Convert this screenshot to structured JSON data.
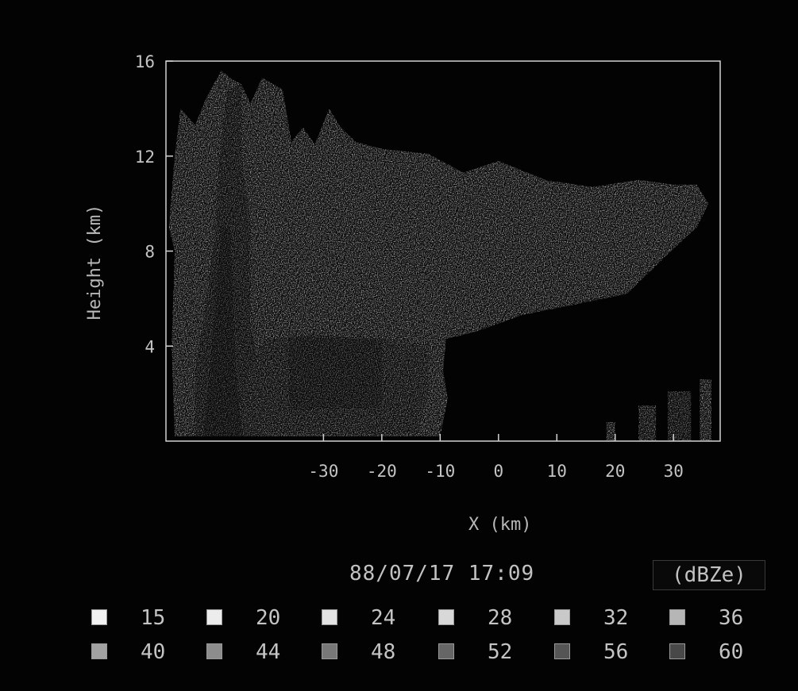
{
  "chart_data": {
    "type": "heatmap",
    "title": "",
    "xlabel": "X (km)",
    "ylabel": "Height (km)",
    "xlim": [
      -57,
      38
    ],
    "ylim": [
      0,
      16
    ],
    "x_ticks": [
      -30,
      -20,
      -10,
      0,
      10,
      20,
      30
    ],
    "y_ticks": [
      4,
      8,
      12,
      16
    ],
    "timestamp": "88/07/17 17:09",
    "unit": "(dBZe)",
    "legend_levels": [
      15,
      20,
      24,
      28,
      32,
      36,
      40,
      44,
      48,
      52,
      56,
      60
    ],
    "level_colors": [
      "#f2f2f2",
      "#ececec",
      "#e3e3e3",
      "#d8d8d8",
      "#c9c9c9",
      "#b6b6b6",
      "#a2a2a2",
      "#8d8d8d",
      "#787878",
      "#666666",
      "#555555",
      "#484848"
    ],
    "echo_regions": [
      {
        "name": "main-anvil-outline",
        "level": 15,
        "polygon": [
          [
            -55.5,
            0.2
          ],
          [
            -56,
            4
          ],
          [
            -55.5,
            8
          ],
          [
            -56.5,
            9
          ],
          [
            -55.5,
            12
          ],
          [
            -54.5,
            14
          ],
          [
            -52,
            13.3
          ],
          [
            -50,
            14.5
          ],
          [
            -47.5,
            15.6
          ],
          [
            -46,
            15.3
          ],
          [
            -44,
            15
          ],
          [
            -42.5,
            14.2
          ],
          [
            -40.5,
            15.3
          ],
          [
            -37,
            14.8
          ],
          [
            -35.5,
            12.6
          ],
          [
            -33.5,
            13.2
          ],
          [
            -31.5,
            12.5
          ],
          [
            -29,
            14
          ],
          [
            -27,
            13.2
          ],
          [
            -24.5,
            12.6
          ],
          [
            -20,
            12.3
          ],
          [
            -12,
            12.1
          ],
          [
            -6,
            11.3
          ],
          [
            0,
            11.8
          ],
          [
            8,
            11
          ],
          [
            16,
            10.7
          ],
          [
            24,
            11
          ],
          [
            30,
            10.8
          ],
          [
            34,
            10.8
          ],
          [
            36,
            10
          ],
          [
            34,
            9
          ],
          [
            30,
            8.1
          ],
          [
            22,
            6.2
          ],
          [
            12,
            5.7
          ],
          [
            4,
            5.3
          ],
          [
            -4,
            4.6
          ],
          [
            -9,
            4.3
          ],
          [
            -9.5,
            3
          ],
          [
            -8.7,
            1.8
          ],
          [
            -10,
            0.2
          ]
        ]
      },
      {
        "name": "core-column",
        "level": 36,
        "polygon": [
          [
            -52,
            0.2
          ],
          [
            -52,
            3
          ],
          [
            -50,
            6
          ],
          [
            -48.5,
            9
          ],
          [
            -48,
            11.5
          ],
          [
            -46.5,
            14.8
          ],
          [
            -44,
            15
          ],
          [
            -44,
            12
          ],
          [
            -42.5,
            9
          ],
          [
            -42.5,
            5
          ],
          [
            -41,
            3
          ],
          [
            -41,
            0.2
          ]
        ]
      },
      {
        "name": "core-inner",
        "level": 44,
        "polygon": [
          [
            -50.5,
            0.2
          ],
          [
            -49.5,
            3
          ],
          [
            -48.5,
            6
          ],
          [
            -47.5,
            9
          ],
          [
            -46,
            9
          ],
          [
            -45.5,
            6
          ],
          [
            -45,
            3
          ],
          [
            -44,
            0.2
          ]
        ]
      },
      {
        "name": "low-level-rain",
        "level": 32,
        "polygon": [
          [
            -44,
            0.3
          ],
          [
            -43.5,
            2.5
          ],
          [
            -40,
            4.3
          ],
          [
            -32,
            4.5
          ],
          [
            -20,
            4.3
          ],
          [
            -12,
            4
          ],
          [
            -12,
            2
          ],
          [
            -14,
            0.3
          ]
        ]
      },
      {
        "name": "rain-band",
        "level": 40,
        "polygon": [
          [
            -36,
            1.3
          ],
          [
            -36,
            4.4
          ],
          [
            -20,
            4.3
          ],
          [
            -20,
            1.4
          ]
        ]
      }
    ],
    "isolated_cells": [
      {
        "name": "cell-19",
        "x_range": [
          18.5,
          20
        ],
        "y_range": [
          0,
          0.8
        ],
        "level": 20
      },
      {
        "name": "cell-25",
        "x_range": [
          24,
          27
        ],
        "y_range": [
          0,
          1.5
        ],
        "level": 32
      },
      {
        "name": "cell-29",
        "x_range": [
          29,
          33
        ],
        "y_range": [
          0,
          2.1
        ],
        "level": 36
      },
      {
        "name": "cell-35",
        "x_range": [
          34.5,
          36.5
        ],
        "y_range": [
          0,
          2.6
        ],
        "level": 20
      }
    ]
  }
}
